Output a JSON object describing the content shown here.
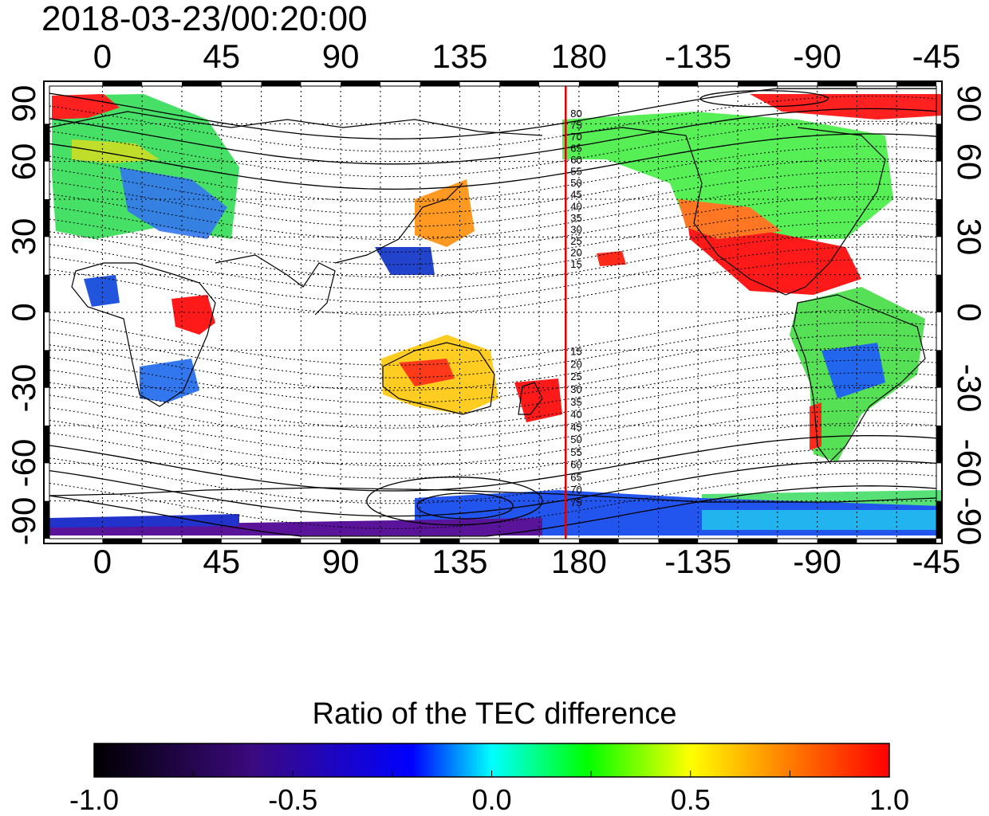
{
  "timestamp": "2018-03-23/00:20:00",
  "map": {
    "lon_ticks_top": [
      "0",
      "45",
      "90",
      "135",
      "180",
      "-135",
      "-90",
      "-45"
    ],
    "lon_ticks_bottom": [
      "0",
      "45",
      "90",
      "135",
      "180",
      "-135",
      "-90",
      "-45"
    ],
    "lat_ticks_left": [
      "90",
      "60",
      "30",
      "0",
      "-30",
      "-60",
      "-90"
    ],
    "lat_ticks_right": [
      "90",
      "60",
      "30",
      "0",
      "-30",
      "-60",
      "-90"
    ],
    "lon_range": [
      -20,
      315
    ],
    "lat_range": [
      -90,
      90
    ],
    "red_line_lon": 175,
    "contour_labels_north": [
      "80",
      "75",
      "70",
      "65",
      "60",
      "55",
      "50",
      "45",
      "40",
      "35",
      "30",
      "25",
      "20",
      "15"
    ],
    "contour_labels_south": [
      "15",
      "20",
      "25",
      "30",
      "35",
      "40",
      "45",
      "50",
      "55",
      "60",
      "65",
      "70",
      "75"
    ],
    "grid": true
  },
  "colorbar": {
    "title": "Ratio of the TEC difference",
    "tick_labels": [
      "-1.0",
      "-0.5",
      "0.0",
      "0.5",
      "1.0"
    ],
    "range": [
      -1.0,
      1.0
    ],
    "colors": [
      "#000000",
      "#3b0a80",
      "#0000ff",
      "#00ffff",
      "#00ff00",
      "#ffff00",
      "#ff8000",
      "#ff0000"
    ]
  },
  "colors": {
    "frame": "#000000",
    "red_line": "#e00000",
    "coast": "#000000"
  }
}
